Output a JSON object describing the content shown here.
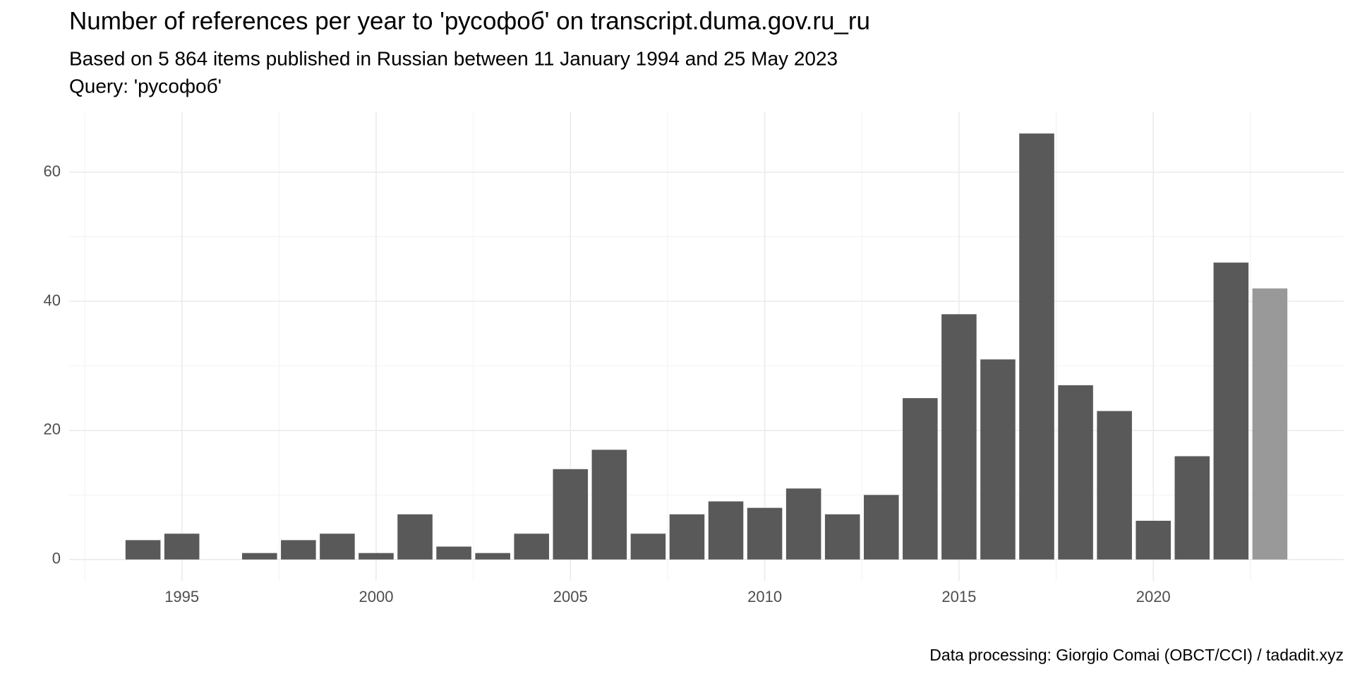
{
  "chart_data": {
    "type": "bar",
    "title": "Number of references per year to 'русофоб' on transcript.duma.gov.ru_ru",
    "subtitle": "Based on 5 864 items published in Russian between 11 January 1994 and 25 May 2023",
    "query": "Query: 'русофоб'",
    "caption": "Data processing: Giorgio Comai (OBCT/CCI) / tadadit.xyz",
    "x": [
      1994,
      1995,
      1997,
      1998,
      1999,
      2000,
      2001,
      2002,
      2003,
      2004,
      2005,
      2006,
      2007,
      2008,
      2009,
      2010,
      2011,
      2012,
      2013,
      2014,
      2015,
      2016,
      2017,
      2018,
      2019,
      2020,
      2021,
      2022,
      2023
    ],
    "values": [
      3,
      4,
      1,
      3,
      4,
      1,
      7,
      2,
      1,
      4,
      14,
      17,
      4,
      7,
      9,
      8,
      11,
      7,
      10,
      25,
      38,
      31,
      66,
      27,
      23,
      6,
      16,
      46,
      42
    ],
    "colors": [
      "#595959",
      "#595959",
      "#595959",
      "#595959",
      "#595959",
      "#595959",
      "#595959",
      "#595959",
      "#595959",
      "#595959",
      "#595959",
      "#595959",
      "#595959",
      "#595959",
      "#595959",
      "#595959",
      "#595959",
      "#595959",
      "#595959",
      "#595959",
      "#595959",
      "#595959",
      "#595959",
      "#595959",
      "#595959",
      "#595959",
      "#595959",
      "#595959",
      "#999999"
    ],
    "xlim": [
      1992.1,
      2024.9
    ],
    "xticks": [
      1995,
      2000,
      2005,
      2010,
      2015,
      2020
    ],
    "xminor": [
      1992.5,
      1997.5,
      2002.5,
      2007.5,
      2012.5,
      2017.5,
      2022.5
    ],
    "ylim": [
      -3.3,
      69.3
    ],
    "yticks": [
      0,
      20,
      40,
      60
    ],
    "yminor": [
      10,
      30,
      50
    ],
    "grid": true
  }
}
